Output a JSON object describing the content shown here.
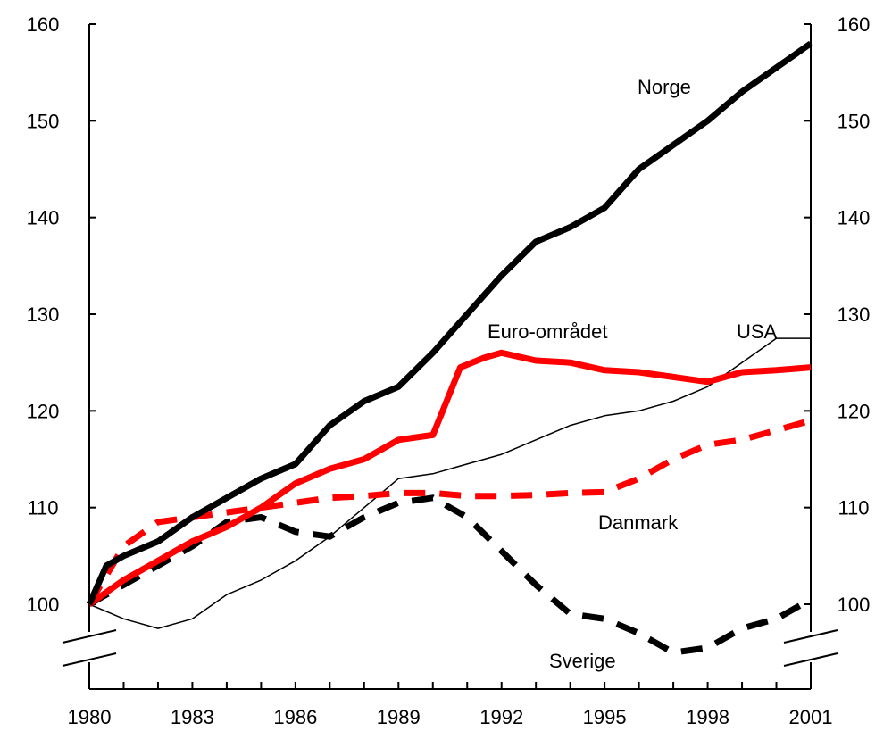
{
  "chart_data": {
    "type": "line",
    "title": "",
    "xlabel": "",
    "ylabel": "",
    "xlim": [
      1980,
      2001
    ],
    "ylim": [
      100,
      160
    ],
    "x_ticks": [
      "1980",
      "1983",
      "1986",
      "1989",
      "1992",
      "1995",
      "1998",
      "2001"
    ],
    "y_ticks": [
      "100",
      "110",
      "120",
      "130",
      "140",
      "150",
      "160"
    ],
    "axis_break": true,
    "grid": false,
    "series": [
      {
        "name": "Norge",
        "color": "#000000",
        "style": "solid-thick",
        "x": [
          1980,
          1980.5,
          1981,
          1982,
          1983,
          1984,
          1985,
          1986,
          1987,
          1988,
          1989,
          1990,
          1991,
          1992,
          1993,
          1994,
          1995,
          1996,
          1997,
          1998,
          1999,
          2000,
          2001
        ],
        "y": [
          100,
          104,
          105,
          106.5,
          109,
          111,
          113,
          114.5,
          118.5,
          121,
          122.5,
          126,
          130,
          134,
          137.5,
          139,
          141,
          145,
          147.5,
          150,
          153,
          155.5,
          158
        ]
      },
      {
        "name": "Euro-området",
        "color": "#ff0000",
        "style": "solid-thick",
        "x": [
          1980,
          1981,
          1982,
          1983,
          1984,
          1985,
          1986,
          1987,
          1988,
          1989,
          1990,
          1990.8,
          1991.5,
          1992,
          1993,
          1994,
          1995,
          1996,
          1997,
          1998,
          1999,
          2000,
          2001
        ],
        "y": [
          100,
          102.5,
          104.5,
          106.5,
          108,
          110,
          112.5,
          114,
          115,
          117,
          117.5,
          124.5,
          125.5,
          126,
          125.2,
          125,
          124.2,
          124,
          123.5,
          123,
          124,
          124.2,
          124.5
        ]
      },
      {
        "name": "USA",
        "color": "#000000",
        "style": "solid-thin",
        "x": [
          1980,
          1981,
          1982,
          1983,
          1984,
          1985,
          1986,
          1987,
          1988,
          1989,
          1990,
          1991,
          1992,
          1993,
          1994,
          1995,
          1996,
          1997,
          1998,
          1999,
          2000,
          2001
        ],
        "y": [
          100,
          98.5,
          97.5,
          98.5,
          101,
          102.5,
          104.5,
          107,
          110,
          113,
          113.5,
          114.5,
          115.5,
          117,
          118.5,
          119.5,
          120,
          121,
          122.5,
          125,
          127.5,
          127.5
        ]
      },
      {
        "name": "Danmark",
        "color": "#ff0000",
        "style": "dashed-thick",
        "x": [
          1980,
          1981,
          1982,
          1983,
          1984,
          1985,
          1986,
          1987,
          1988,
          1989,
          1990,
          1991,
          1992,
          1993,
          1994,
          1995,
          1996,
          1997,
          1998,
          1999,
          2000,
          2001
        ],
        "y": [
          100,
          106,
          108.5,
          109,
          109.5,
          110,
          110.5,
          111,
          111.2,
          111.5,
          111.5,
          111.2,
          111.2,
          111.3,
          111.5,
          111.6,
          113,
          115,
          116.5,
          117,
          118,
          119
        ]
      },
      {
        "name": "Sverige",
        "color": "#000000",
        "style": "dashed-thick",
        "x": [
          1980,
          1981,
          1982,
          1983,
          1984,
          1985,
          1986,
          1987,
          1988,
          1989,
          1990,
          1991,
          1992,
          1993,
          1994,
          1995,
          1996,
          1997,
          1998,
          1999,
          2000,
          2001
        ],
        "y": [
          100,
          102,
          104,
          106,
          108.5,
          109,
          107.5,
          107,
          109,
          110.5,
          111,
          109,
          105.5,
          102,
          99,
          98.5,
          97,
          95,
          95.5,
          97.5,
          98.5,
          100.5
        ]
      }
    ],
    "labels": {
      "norge": "Norge",
      "euro": "Euro-området",
      "usa": "USA",
      "danmark": "Danmark",
      "sverige": "Sverige"
    }
  }
}
